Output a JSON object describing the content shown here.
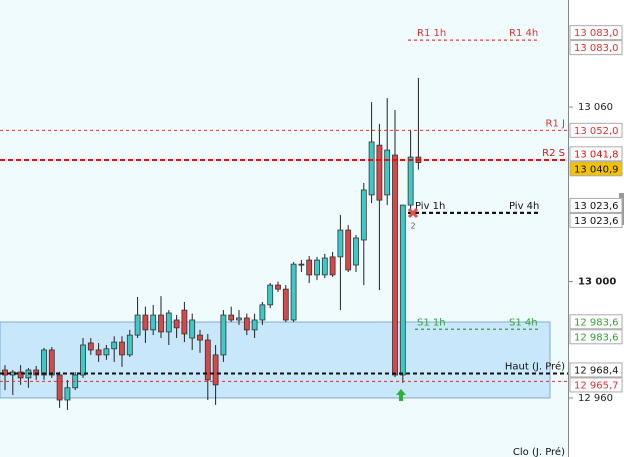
{
  "chart_data": {
    "type": "candlestick",
    "ylim": [
      12939.7,
      13096.8
    ],
    "yticks": [
      {
        "value": 13060,
        "label": "13 060"
      },
      {
        "value": 13000,
        "label": "13 000"
      },
      {
        "value": 12960,
        "label": "12 960"
      }
    ],
    "open": [
      12969.6,
      12967.9,
      12968.9,
      12966.9,
      12969.6,
      12967.9,
      12976.5,
      12967.9,
      12959.3,
      12963.5,
      12967.9,
      12978.9,
      12976.5,
      12974.8,
      12976.9,
      12979.2,
      12974.8,
      12981.6,
      12988.5,
      12983.4,
      12988.5,
      12982.7,
      12986.8,
      12990.2,
      12980.6,
      12981.6,
      12979.9,
      12974.8,
      12974.8,
      12988.5,
      12986.8,
      12987.5,
      12983.4,
      12986.8,
      12992.0,
      12998.8,
      12997.4,
      12986.8,
      13006.0,
      13007.4,
      13002.3,
      13002.3,
      13008.5,
      13008.5,
      13017.7,
      13005.7,
      13014.3,
      13029.8,
      13046.9,
      13029.8,
      13043.5,
      12967.9,
      13026.3,
      13042.8
    ],
    "high": [
      12971.3,
      12969.6,
      12971.3,
      12970.3,
      12971.0,
      12977.2,
      12977.5,
      12969.0,
      12966.2,
      12968.9,
      12980.6,
      12980.6,
      12978.9,
      12978.2,
      12981.2,
      12981.2,
      12983.4,
      12994.7,
      12991.4,
      12992.0,
      12995.0,
      12990.2,
      12988.5,
      12993.0,
      12989.0,
      12983.4,
      12982.0,
      12978.2,
      12990.2,
      12991.4,
      12990.2,
      12989.0,
      12989.0,
      12993.0,
      12999.5,
      13000.0,
      12998.8,
      13006.7,
      13007.4,
      13008.8,
      13008.5,
      13009.5,
      13010.2,
      13022.9,
      13019.4,
      13016.0,
      13033.9,
      13061.7,
      13054.2,
      13063.1,
      13059.0,
      13026.3,
      13052.0,
      13070.0
    ],
    "low": [
      12962.7,
      12961.0,
      12964.5,
      12963.5,
      12966.2,
      12966.2,
      12966.9,
      12956.6,
      12955.9,
      12962.7,
      12966.9,
      12974.8,
      12972.4,
      12973.1,
      12972.4,
      12970.7,
      12974.1,
      12980.6,
      12978.9,
      12981.6,
      12980.6,
      12978.2,
      12980.6,
      12979.2,
      12976.5,
      12975.5,
      12959.3,
      12957.6,
      12972.4,
      12986.1,
      12985.1,
      12981.6,
      12980.6,
      12985.1,
      12990.9,
      12996.4,
      12986.1,
      12986.1,
      13003.3,
      12999.5,
      13000.5,
      13001.2,
      13001.6,
      12990.2,
      13003.3,
      13003.3,
      12998.8,
      13027.0,
      12997.1,
      13026.3,
      12967.2,
      12965.2,
      13025.0,
      13038.5
    ],
    "close": [
      12967.9,
      12968.9,
      12966.9,
      12969.6,
      12967.9,
      12976.5,
      12967.9,
      12959.3,
      12963.5,
      12967.9,
      12978.2,
      12976.5,
      12974.8,
      12976.9,
      12979.2,
      12974.8,
      12981.6,
      12988.5,
      12983.4,
      12988.5,
      12982.7,
      12989.2,
      12984.1,
      12982.0,
      12986.8,
      12979.9,
      12966.2,
      12964.5,
      12988.5,
      12986.8,
      12987.5,
      12983.4,
      12986.8,
      12992.0,
      12998.8,
      12997.4,
      12986.8,
      13006.0,
      13005.7,
      13002.3,
      13007.4,
      13008.1,
      13002.3,
      13017.7,
      13004.0,
      13015.0,
      13031.5,
      13048.0,
      13028.0,
      13045.2,
      12967.9,
      13026.3,
      13042.8,
      13040.9
    ],
    "up_color": "#3ec9c9",
    "down_color": "#d94848",
    "zone": [
      12960.0,
      12986.1
    ],
    "levels": [
      {
        "name": "R1 1h",
        "value": 13083.0,
        "value_label": "13 083,0",
        "color": "#e03030"
      },
      {
        "name": "R1 4h",
        "value": 13083.0,
        "value_label": "13 083,0",
        "color": "#e03030"
      },
      {
        "name": "R1 J",
        "value": 13052.0,
        "value_label": "13 052,0",
        "color": "#e03030"
      },
      {
        "name": "R2 S",
        "value": 13041.8,
        "value_label": "13 041,8",
        "color": "#e01010"
      },
      {
        "name": "Piv 1h",
        "value": 13023.6,
        "value_label": "13 023,6",
        "color": "#111111"
      },
      {
        "name": "Piv 4h",
        "value": 13023.6,
        "value_label": "13 023,6",
        "color": "#111111"
      },
      {
        "name": "S1 1h",
        "value": 12983.6,
        "value_label": "12 983,6",
        "color": "#33a033"
      },
      {
        "name": "S1 4h",
        "value": 12983.6,
        "value_label": "12 983,6",
        "color": "#33a033"
      },
      {
        "name": "Haut (J. Pré)",
        "value": 12968.4,
        "value_label": "12 968,4",
        "color": "#111111"
      },
      {
        "name": null,
        "value": 12965.7,
        "value_label": "12 965,7",
        "color": "#e03030"
      }
    ],
    "last_price": {
      "value": 13040.9,
      "value_label": "13 040,9",
      "color": "#f2c200"
    },
    "bottom_label": "Clo (J. Pré)"
  }
}
